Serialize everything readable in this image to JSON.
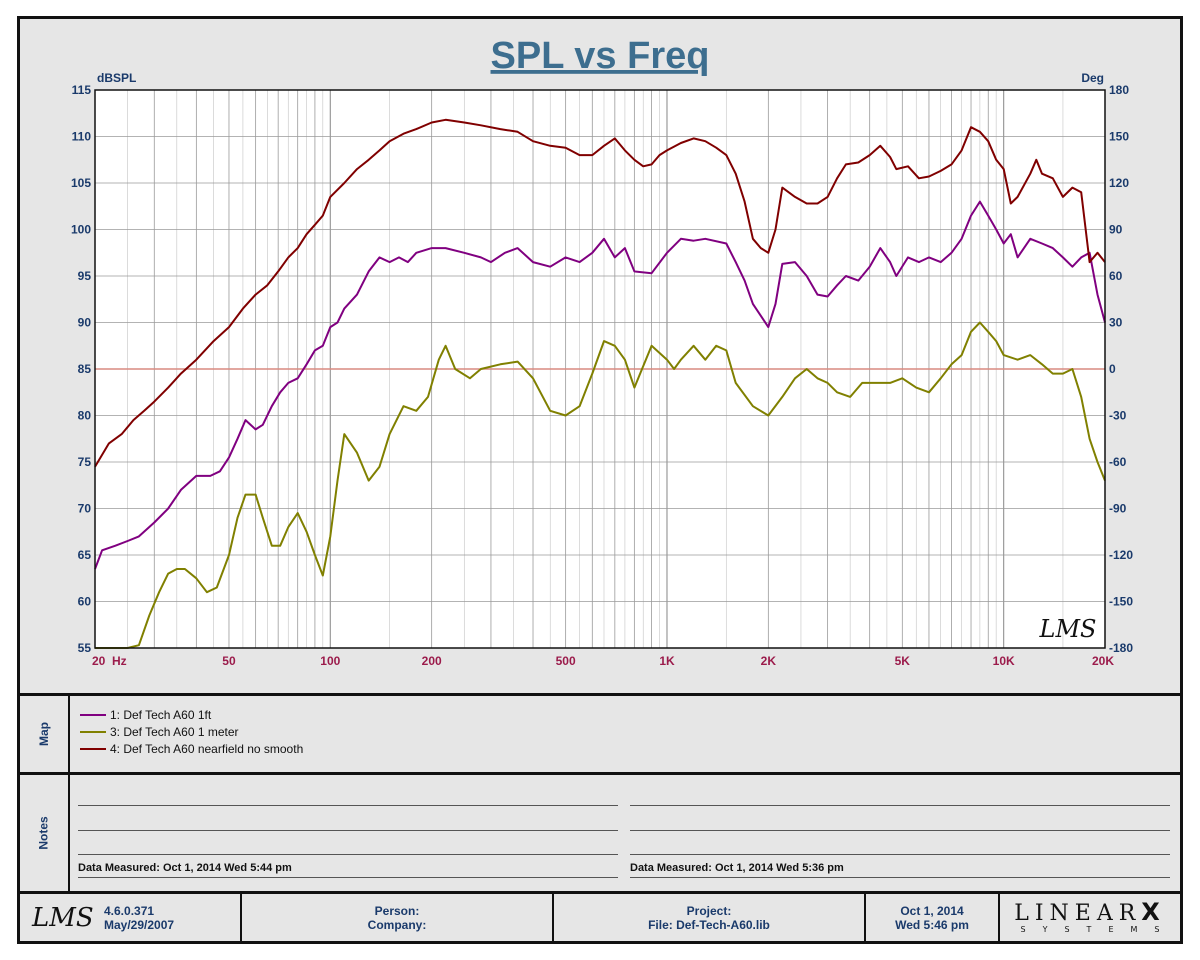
{
  "title": "SPL vs Freq",
  "colors": {
    "title": "#3d6e8f",
    "axis_text": "#1a3a6b",
    "freq_text": "#9b1b4b",
    "grid": "#9a9a9a",
    "zero_line": "#d98a80",
    "plot_bg": "#ffffff"
  },
  "chart_data": {
    "type": "line",
    "title": "SPL vs Freq",
    "x_scale": "log",
    "xlim": [
      20,
      20000
    ],
    "ylim": [
      55,
      115
    ],
    "y2lim": [
      -180,
      180
    ],
    "ylabel": "dBSPL",
    "y2label": "Deg",
    "grid": true,
    "x_tick_labels": [
      {
        "value": 20,
        "label": "20  Hz"
      },
      {
        "value": 50,
        "label": "50"
      },
      {
        "value": 100,
        "label": "100"
      },
      {
        "value": 200,
        "label": "200"
      },
      {
        "value": 500,
        "label": "500"
      },
      {
        "value": 1000,
        "label": "1K"
      },
      {
        "value": 2000,
        "label": "2K"
      },
      {
        "value": 5000,
        "label": "5K"
      },
      {
        "value": 10000,
        "label": "10K"
      },
      {
        "value": 20000,
        "label": "20K"
      }
    ],
    "y_ticks": [
      115,
      110,
      105,
      100,
      95,
      90,
      85,
      80,
      75,
      70,
      65,
      60,
      55
    ],
    "y2_ticks": [
      180,
      150,
      120,
      90,
      60,
      30,
      0,
      -30,
      -60,
      -90,
      -120,
      -150,
      -180
    ],
    "reference_line": {
      "y2": 0
    },
    "series": [
      {
        "name": "1: Def Tech A60 1ft",
        "color": "#800080",
        "points": [
          [
            20,
            63.5
          ],
          [
            21,
            65.5
          ],
          [
            23,
            66
          ],
          [
            25,
            66.5
          ],
          [
            27,
            67
          ],
          [
            30,
            68.5
          ],
          [
            33,
            70
          ],
          [
            36,
            72
          ],
          [
            40,
            73.5
          ],
          [
            44,
            73.5
          ],
          [
            47,
            74
          ],
          [
            50,
            75.5
          ],
          [
            53,
            77.5
          ],
          [
            56,
            79.5
          ],
          [
            60,
            78.5
          ],
          [
            63,
            79
          ],
          [
            67,
            81
          ],
          [
            71,
            82.5
          ],
          [
            75,
            83.5
          ],
          [
            80,
            84
          ],
          [
            85,
            85.5
          ],
          [
            90,
            87
          ],
          [
            95,
            87.5
          ],
          [
            100,
            89.5
          ],
          [
            105,
            90
          ],
          [
            110,
            91.5
          ],
          [
            120,
            93
          ],
          [
            130,
            95.5
          ],
          [
            140,
            97
          ],
          [
            150,
            96.5
          ],
          [
            160,
            97
          ],
          [
            170,
            96.5
          ],
          [
            180,
            97.5
          ],
          [
            200,
            98
          ],
          [
            220,
            98
          ],
          [
            250,
            97.5
          ],
          [
            280,
            97
          ],
          [
            300,
            96.5
          ],
          [
            330,
            97.5
          ],
          [
            360,
            98
          ],
          [
            400,
            96.5
          ],
          [
            450,
            96
          ],
          [
            500,
            97
          ],
          [
            550,
            96.5
          ],
          [
            600,
            97.5
          ],
          [
            650,
            99
          ],
          [
            700,
            97
          ],
          [
            750,
            98
          ],
          [
            800,
            95.5
          ],
          [
            900,
            95.3
          ],
          [
            1000,
            97.5
          ],
          [
            1100,
            99
          ],
          [
            1200,
            98.8
          ],
          [
            1300,
            99
          ],
          [
            1500,
            98.5
          ],
          [
            1600,
            96.5
          ],
          [
            1700,
            94.5
          ],
          [
            1800,
            92
          ],
          [
            2000,
            89.5
          ],
          [
            2100,
            92
          ],
          [
            2200,
            96.3
          ],
          [
            2400,
            96.5
          ],
          [
            2600,
            95
          ],
          [
            2800,
            93
          ],
          [
            3000,
            92.8
          ],
          [
            3200,
            94
          ],
          [
            3400,
            95
          ],
          [
            3700,
            94.5
          ],
          [
            4000,
            96
          ],
          [
            4300,
            98
          ],
          [
            4600,
            96.5
          ],
          [
            4800,
            95
          ],
          [
            5200,
            97
          ],
          [
            5600,
            96.5
          ],
          [
            6000,
            97
          ],
          [
            6500,
            96.5
          ],
          [
            7000,
            97.5
          ],
          [
            7500,
            99
          ],
          [
            8000,
            101.5
          ],
          [
            8500,
            103
          ],
          [
            9000,
            101.5
          ],
          [
            9500,
            100
          ],
          [
            10000,
            98.5
          ],
          [
            10500,
            99.5
          ],
          [
            11000,
            97
          ],
          [
            12000,
            99
          ],
          [
            13000,
            98.5
          ],
          [
            14000,
            98
          ],
          [
            15000,
            97
          ],
          [
            16000,
            96
          ],
          [
            17000,
            97
          ],
          [
            18000,
            97.5
          ],
          [
            19000,
            93
          ],
          [
            20000,
            90
          ]
        ]
      },
      {
        "name": "3: Def Tech A60 1 meter",
        "color": "#808000",
        "points": [
          [
            20,
            55
          ],
          [
            25,
            55
          ],
          [
            27,
            55.3
          ],
          [
            29,
            58.5
          ],
          [
            31,
            61
          ],
          [
            33,
            63
          ],
          [
            35,
            63.5
          ],
          [
            37,
            63.5
          ],
          [
            40,
            62.5
          ],
          [
            43,
            61
          ],
          [
            46,
            61.5
          ],
          [
            50,
            65
          ],
          [
            53,
            69
          ],
          [
            56,
            71.5
          ],
          [
            60,
            71.5
          ],
          [
            63,
            69
          ],
          [
            67,
            66
          ],
          [
            71,
            66
          ],
          [
            75,
            68
          ],
          [
            80,
            69.5
          ],
          [
            85,
            67.5
          ],
          [
            90,
            65
          ],
          [
            95,
            62.8
          ],
          [
            100,
            67
          ],
          [
            105,
            73
          ],
          [
            110,
            78
          ],
          [
            120,
            76
          ],
          [
            130,
            73
          ],
          [
            140,
            74.5
          ],
          [
            150,
            78
          ],
          [
            165,
            81
          ],
          [
            180,
            80.5
          ],
          [
            195,
            82
          ],
          [
            210,
            86
          ],
          [
            220,
            87.5
          ],
          [
            235,
            85
          ],
          [
            260,
            84
          ],
          [
            280,
            85
          ],
          [
            320,
            85.5
          ],
          [
            360,
            85.8
          ],
          [
            400,
            84
          ],
          [
            450,
            80.5
          ],
          [
            500,
            80
          ],
          [
            550,
            81
          ],
          [
            600,
            84.5
          ],
          [
            650,
            88
          ],
          [
            700,
            87.5
          ],
          [
            750,
            86
          ],
          [
            800,
            83
          ],
          [
            900,
            87.5
          ],
          [
            1000,
            86
          ],
          [
            1050,
            85
          ],
          [
            1100,
            86
          ],
          [
            1200,
            87.5
          ],
          [
            1300,
            86
          ],
          [
            1400,
            87.5
          ],
          [
            1500,
            87
          ],
          [
            1600,
            83.5
          ],
          [
            1800,
            81
          ],
          [
            2000,
            80
          ],
          [
            2200,
            82
          ],
          [
            2400,
            84
          ],
          [
            2600,
            85
          ],
          [
            2800,
            84
          ],
          [
            3000,
            83.5
          ],
          [
            3200,
            82.5
          ],
          [
            3500,
            82
          ],
          [
            3800,
            83.5
          ],
          [
            4200,
            83.5
          ],
          [
            4600,
            83.5
          ],
          [
            5000,
            84
          ],
          [
            5500,
            83
          ],
          [
            6000,
            82.5
          ],
          [
            6500,
            84
          ],
          [
            7000,
            85.5
          ],
          [
            7500,
            86.5
          ],
          [
            8000,
            89
          ],
          [
            8500,
            90
          ],
          [
            9000,
            89
          ],
          [
            9500,
            88
          ],
          [
            10000,
            86.5
          ],
          [
            11000,
            86
          ],
          [
            12000,
            86.5
          ],
          [
            13000,
            85.5
          ],
          [
            14000,
            84.5
          ],
          [
            15000,
            84.5
          ],
          [
            16000,
            85
          ],
          [
            17000,
            82
          ],
          [
            18000,
            77.5
          ],
          [
            19000,
            75
          ],
          [
            20000,
            73
          ]
        ]
      },
      {
        "name": "4: Def Tech A60 nearfield no smooth",
        "color": "#800000",
        "points": [
          [
            20,
            74.5
          ],
          [
            22,
            77
          ],
          [
            24,
            78
          ],
          [
            26,
            79.5
          ],
          [
            28,
            80.5
          ],
          [
            30,
            81.5
          ],
          [
            33,
            83
          ],
          [
            36,
            84.5
          ],
          [
            40,
            86
          ],
          [
            45,
            88
          ],
          [
            50,
            89.5
          ],
          [
            55,
            91.5
          ],
          [
            60,
            93
          ],
          [
            65,
            94
          ],
          [
            70,
            95.5
          ],
          [
            75,
            97
          ],
          [
            80,
            98
          ],
          [
            85,
            99.5
          ],
          [
            90,
            100.5
          ],
          [
            95,
            101.5
          ],
          [
            100,
            103.5
          ],
          [
            110,
            105
          ],
          [
            120,
            106.5
          ],
          [
            130,
            107.5
          ],
          [
            140,
            108.5
          ],
          [
            150,
            109.5
          ],
          [
            165,
            110.3
          ],
          [
            180,
            110.8
          ],
          [
            200,
            111.5
          ],
          [
            220,
            111.8
          ],
          [
            250,
            111.5
          ],
          [
            280,
            111.2
          ],
          [
            320,
            110.8
          ],
          [
            360,
            110.5
          ],
          [
            400,
            109.5
          ],
          [
            450,
            109
          ],
          [
            500,
            108.8
          ],
          [
            550,
            108
          ],
          [
            600,
            108
          ],
          [
            650,
            109
          ],
          [
            700,
            109.8
          ],
          [
            750,
            108.5
          ],
          [
            800,
            107.5
          ],
          [
            850,
            106.8
          ],
          [
            900,
            107
          ],
          [
            950,
            108
          ],
          [
            1000,
            108.5
          ],
          [
            1100,
            109.3
          ],
          [
            1200,
            109.8
          ],
          [
            1300,
            109.5
          ],
          [
            1400,
            108.8
          ],
          [
            1500,
            108
          ],
          [
            1600,
            106
          ],
          [
            1700,
            103
          ],
          [
            1800,
            99
          ],
          [
            1900,
            98
          ],
          [
            2000,
            97.5
          ],
          [
            2100,
            100
          ],
          [
            2200,
            104.5
          ],
          [
            2400,
            103.5
          ],
          [
            2600,
            102.8
          ],
          [
            2800,
            102.8
          ],
          [
            3000,
            103.5
          ],
          [
            3200,
            105.5
          ],
          [
            3400,
            107
          ],
          [
            3700,
            107.2
          ],
          [
            4000,
            108
          ],
          [
            4300,
            109
          ],
          [
            4600,
            107.8
          ],
          [
            4800,
            106.5
          ],
          [
            5200,
            106.8
          ],
          [
            5600,
            105.5
          ],
          [
            6000,
            105.7
          ],
          [
            6500,
            106.3
          ],
          [
            7000,
            107
          ],
          [
            7500,
            108.5
          ],
          [
            8000,
            111
          ],
          [
            8500,
            110.5
          ],
          [
            9000,
            109.5
          ],
          [
            9500,
            107.5
          ],
          [
            10000,
            106.5
          ],
          [
            10500,
            102.8
          ],
          [
            11000,
            103.5
          ],
          [
            12000,
            106
          ],
          [
            12500,
            107.5
          ],
          [
            13000,
            106
          ],
          [
            14000,
            105.5
          ],
          [
            15000,
            103.5
          ],
          [
            16000,
            104.5
          ],
          [
            17000,
            104
          ],
          [
            18000,
            96.5
          ],
          [
            19000,
            97.5
          ],
          [
            20000,
            96.5
          ]
        ]
      }
    ]
  },
  "map_panel": {
    "label": "Map",
    "entries": [
      {
        "text": "1: Def Tech A60 1ft",
        "color": "#800080"
      },
      {
        "text": "3: Def Tech A60 1 meter",
        "color": "#808000"
      },
      {
        "text": "4: Def Tech A60 nearfield no smooth",
        "color": "#800000"
      }
    ]
  },
  "notes_panel": {
    "label": "Notes",
    "left_measured": "Data Measured: Oct  1, 2014  Wed  5:44 pm",
    "right_measured": "Data Measured: Oct  1, 2014  Wed  5:36 pm"
  },
  "footer": {
    "logo_text": "LMS",
    "version": "4.6.0.371",
    "version_date": "May/29/2007",
    "person_label": "Person:",
    "company_label": "Company:",
    "project_label": "Project:",
    "file_label": "File: Def-Tech-A60.lib",
    "date": "Oct  1, 2014",
    "day_time": "Wed  5:46 pm",
    "brand": "LINEAR",
    "brand_x": "X",
    "brand_sub": "SYSTEMS"
  },
  "watermark": "LMS"
}
